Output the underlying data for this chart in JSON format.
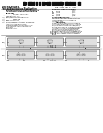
{
  "bg_color": "#ffffff",
  "bar_color": "#111111",
  "text_dark": "#111111",
  "text_med": "#333333",
  "text_light": "#666666",
  "line_color": "#888888",
  "box_edge": "#555555",
  "box_face": "#f0f0f0",
  "inner_face": "#e0e0e0"
}
